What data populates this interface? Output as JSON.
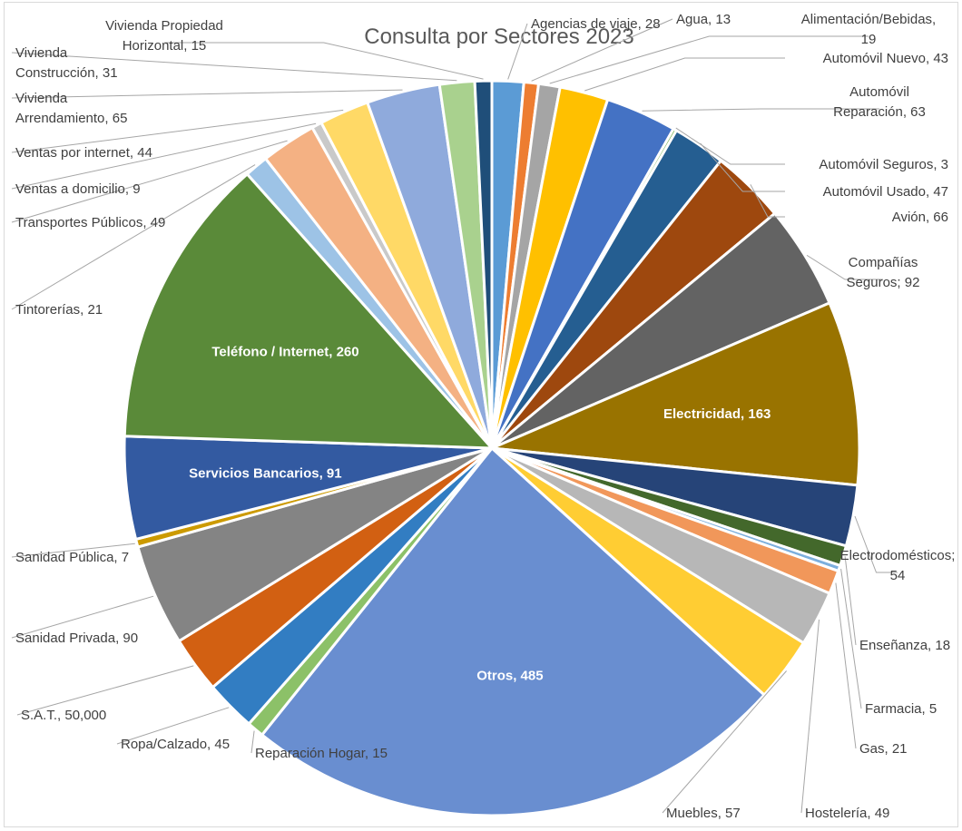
{
  "chart_data": {
    "type": "pie",
    "title": "Consulta por Sectores 2023",
    "legend": "none",
    "slices": [
      {
        "label": "Agencias de viaje",
        "display": "Agencias de viaje, 28",
        "value": 28,
        "color": "#5b9bd5"
      },
      {
        "label": "Agua",
        "display": "Agua, 13",
        "value": 13,
        "color": "#ed7d31"
      },
      {
        "label": "Alimentación/Bebidas",
        "display": "Alimentación/Bebidas, 19",
        "value": 19,
        "color": "#a5a5a5"
      },
      {
        "label": "Automóvil Nuevo",
        "display": "Automóvil Nuevo, 43",
        "value": 43,
        "color": "#ffc000"
      },
      {
        "label": "Automóvil Reparación",
        "display": "Automóvil Reparación, 63",
        "value": 63,
        "color": "#4472c4"
      },
      {
        "label": "Automóvil Seguros",
        "display": "Automóvil Seguros, 3",
        "value": 3,
        "color": "#70ad47"
      },
      {
        "label": "Automóvil Usado",
        "display": "Automóvil Usado, 47",
        "value": 47,
        "color": "#255e91"
      },
      {
        "label": "Avión",
        "display": "Avión, 66",
        "value": 66,
        "color": "#9e480e"
      },
      {
        "label": "Compañías Seguros",
        "display": "Compañías Seguros; 92",
        "value": 92,
        "color": "#636363"
      },
      {
        "label": "Electricidad",
        "display": "Electricidad, 163",
        "value": 163,
        "color": "#997300"
      },
      {
        "label": "Electrodomésticos",
        "display": "Electrodomésticos; 54",
        "value": 54,
        "color": "#264478"
      },
      {
        "label": "Enseñanza",
        "display": "Enseñanza, 18",
        "value": 18,
        "color": "#43682b"
      },
      {
        "label": "Farmacia",
        "display": "Farmacia, 5",
        "value": 5,
        "color": "#7cafdd"
      },
      {
        "label": "Gas",
        "display": "Gas, 21",
        "value": 21,
        "color": "#f1975a"
      },
      {
        "label": "Hostelería",
        "display": "Hostelería, 49",
        "value": 49,
        "color": "#b7b7b7"
      },
      {
        "label": "Muebles",
        "display": "Muebles, 57",
        "value": 57,
        "color": "#ffcd33"
      },
      {
        "label": "Otros",
        "display": "Otros, 485",
        "value": 485,
        "color": "#698ed0"
      },
      {
        "label": "Reparación Hogar",
        "display": "Reparación Hogar, 15",
        "value": 15,
        "color": "#8cc168"
      },
      {
        "label": "Ropa/Calzado",
        "display": "Ropa/Calzado, 45",
        "value": 45,
        "color": "#327dc2"
      },
      {
        "label": "S.A.T.",
        "display": "S.A.T., 50,000",
        "value": 50,
        "color": "#d26012"
      },
      {
        "label": "Sanidad Privada",
        "display": "Sanidad Privada, 90",
        "value": 90,
        "color": "#848484"
      },
      {
        "label": "Sanidad Pública",
        "display": "Sanidad Pública, 7",
        "value": 7,
        "color": "#cc9a00"
      },
      {
        "label": "Servicios Bancarios",
        "display": "Servicios Bancarios, 91",
        "value": 91,
        "color": "#335aa1"
      },
      {
        "label": "Teléfono / Internet",
        "display": "Teléfono / Internet, 260",
        "value": 260,
        "color": "#5a8a39"
      },
      {
        "label": "Tintorerías",
        "display": "Tintorerías, 21",
        "value": 21,
        "color": "#9dc3e6"
      },
      {
        "label": "Transportes Públicos",
        "display": "Transportes Públicos, 49",
        "value": 49,
        "color": "#f4b183"
      },
      {
        "label": "Ventas a domicilio",
        "display": "Ventas a domicilio, 9",
        "value": 9,
        "color": "#c9c9c9"
      },
      {
        "label": "Ventas por internet",
        "display": "Ventas por internet, 44",
        "value": 44,
        "color": "#ffd966"
      },
      {
        "label": "Vivienda Arrendamiento",
        "display": "Vivienda Arrendamiento, 65",
        "value": 65,
        "color": "#8faadc"
      },
      {
        "label": "Vivienda Construcción",
        "display": "Vivienda Construcción, 31",
        "value": 31,
        "color": "#a9d18e"
      },
      {
        "label": "Vivienda Propiedad Horizontal",
        "display": "Vivienda Propiedad Horizontal, 15",
        "value": 15,
        "color": "#1f4e79"
      }
    ]
  }
}
